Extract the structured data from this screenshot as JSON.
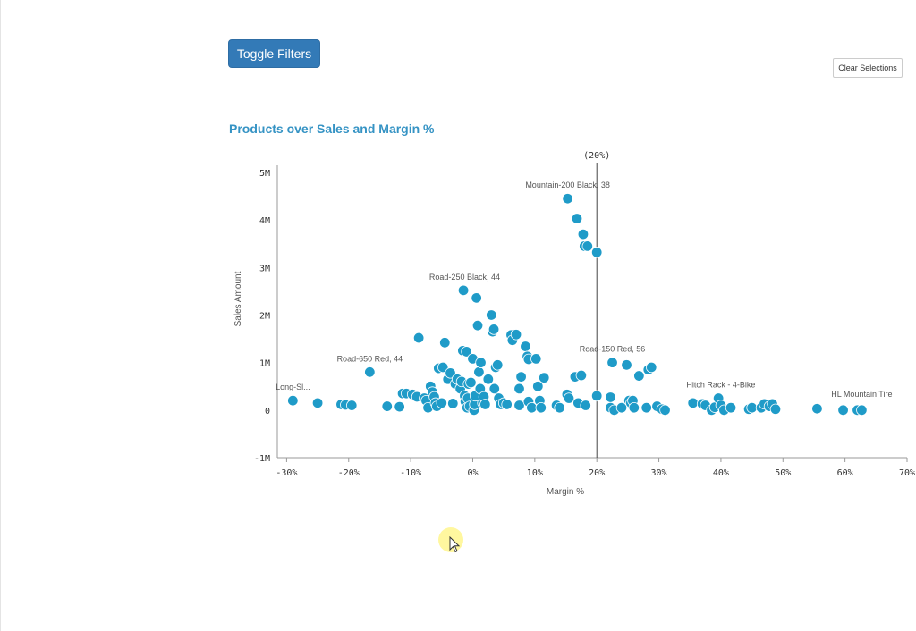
{
  "toolbar": {
    "toggle_label": "Toggle Filters",
    "clear_label": "Clear Selections"
  },
  "colors": {
    "point": "#1f9bc8",
    "point_stroke": "#ffffff",
    "title": "#3593c4",
    "button": "#337ab7",
    "axis": "#999999"
  },
  "chart_data": {
    "type": "scatter",
    "title": "Products over Sales and Margin %",
    "xlabel": "Margin %",
    "ylabel": "Sales Amount",
    "xlim": [
      -0.315,
      0.7
    ],
    "ylim": [
      -1000000,
      5150000
    ],
    "xticks": [
      -0.3,
      -0.2,
      -0.1,
      0,
      0.1,
      0.2,
      0.3,
      0.4,
      0.5,
      0.6,
      0.7
    ],
    "xtick_labels": [
      "-30%",
      "-20%",
      "-10%",
      "0%",
      "10%",
      "20%",
      "30%",
      "40%",
      "50%",
      "60%",
      "70%"
    ],
    "yticks": [
      -1000000,
      0,
      1000000,
      2000000,
      3000000,
      4000000,
      5000000
    ],
    "ytick_labels": [
      "-1M",
      "0",
      "1M",
      "2M",
      "3M",
      "4M",
      "5M"
    ],
    "reference_line": {
      "x": 0.2,
      "label": "(20%)"
    },
    "grid": false,
    "annotations": [
      {
        "text": "Mountain-200 Black, 38",
        "x": 0.153,
        "y": 4450000
      },
      {
        "text": "Road-250 Black, 44",
        "x": -0.013,
        "y": 2520000
      },
      {
        "text": "Road-150 Red, 56",
        "x": 0.225,
        "y": 1000000
      },
      {
        "text": "Road-650 Red, 44",
        "x": -0.166,
        "y": 800000
      },
      {
        "text": "Long-Sl...",
        "x": -0.29,
        "y": 200000
      },
      {
        "text": "Hitch Rack - 4-Bike",
        "x": 0.4,
        "y": 250000
      },
      {
        "text": "HL Mountain Tire",
        "x": 0.627,
        "y": 50000
      }
    ],
    "points": [
      [
        -0.29,
        200000
      ],
      [
        -0.25,
        150000
      ],
      [
        -0.212,
        120000
      ],
      [
        -0.205,
        110000
      ],
      [
        -0.195,
        100000
      ],
      [
        -0.166,
        800000
      ],
      [
        -0.138,
        80000
      ],
      [
        -0.118,
        70000
      ],
      [
        -0.113,
        350000
      ],
      [
        -0.107,
        350000
      ],
      [
        -0.097,
        330000
      ],
      [
        -0.09,
        280000
      ],
      [
        -0.087,
        1520000
      ],
      [
        -0.078,
        250000
      ],
      [
        -0.075,
        200000
      ],
      [
        -0.072,
        50000
      ],
      [
        -0.068,
        500000
      ],
      [
        -0.065,
        380000
      ],
      [
        -0.062,
        280000
      ],
      [
        -0.06,
        150000
      ],
      [
        -0.058,
        80000
      ],
      [
        -0.055,
        880000
      ],
      [
        -0.05,
        150000
      ],
      [
        -0.048,
        900000
      ],
      [
        -0.045,
        1420000
      ],
      [
        -0.04,
        650000
      ],
      [
        -0.036,
        780000
      ],
      [
        -0.032,
        140000
      ],
      [
        -0.028,
        550000
      ],
      [
        -0.025,
        650000
      ],
      [
        -0.02,
        450000
      ],
      [
        -0.018,
        600000
      ],
      [
        -0.016,
        1250000
      ],
      [
        -0.015,
        2520000
      ],
      [
        -0.013,
        300000
      ],
      [
        -0.012,
        180000
      ],
      [
        -0.01,
        1230000
      ],
      [
        -0.009,
        50000
      ],
      [
        -0.008,
        250000
      ],
      [
        -0.007,
        550000
      ],
      [
        -0.005,
        80000
      ],
      [
        -0.003,
        580000
      ],
      [
        0,
        1080000
      ],
      [
        0.002,
        0
      ],
      [
        0.003,
        120000
      ],
      [
        0.004,
        300000
      ],
      [
        0.006,
        2360000
      ],
      [
        0.008,
        1780000
      ],
      [
        0.01,
        800000
      ],
      [
        0.012,
        450000
      ],
      [
        0.013,
        1000000
      ],
      [
        0.016,
        150000
      ],
      [
        0.018,
        280000
      ],
      [
        0.02,
        120000
      ],
      [
        0.025,
        650000
      ],
      [
        0.03,
        2000000
      ],
      [
        0.032,
        1650000
      ],
      [
        0.034,
        1700000
      ],
      [
        0.035,
        450000
      ],
      [
        0.037,
        900000
      ],
      [
        0.04,
        950000
      ],
      [
        0.042,
        250000
      ],
      [
        0.045,
        120000
      ],
      [
        0.05,
        150000
      ],
      [
        0.055,
        120000
      ],
      [
        0.062,
        1580000
      ],
      [
        0.064,
        1470000
      ],
      [
        0.07,
        1590000
      ],
      [
        0.075,
        450000
      ],
      [
        0.075,
        100000
      ],
      [
        0.078,
        700000
      ],
      [
        0.085,
        1340000
      ],
      [
        0.088,
        1130000
      ],
      [
        0.09,
        1070000
      ],
      [
        0.09,
        180000
      ],
      [
        0.095,
        50000
      ],
      [
        0.102,
        1080000
      ],
      [
        0.105,
        500000
      ],
      [
        0.108,
        200000
      ],
      [
        0.11,
        50000
      ],
      [
        0.115,
        680000
      ],
      [
        0.135,
        100000
      ],
      [
        0.14,
        50000
      ],
      [
        0.152,
        330000
      ],
      [
        0.153,
        4450000
      ],
      [
        0.155,
        250000
      ],
      [
        0.165,
        700000
      ],
      [
        0.168,
        4030000
      ],
      [
        0.17,
        150000
      ],
      [
        0.175,
        730000
      ],
      [
        0.178,
        3700000
      ],
      [
        0.18,
        3450000
      ],
      [
        0.182,
        100000
      ],
      [
        0.185,
        3450000
      ],
      [
        0.2,
        3320000
      ],
      [
        0.2,
        300000
      ],
      [
        0.222,
        270000
      ],
      [
        0.222,
        50000
      ],
      [
        0.225,
        1000000
      ],
      [
        0.228,
        0
      ],
      [
        0.24,
        50000
      ],
      [
        0.248,
        950000
      ],
      [
        0.252,
        200000
      ],
      [
        0.255,
        150000
      ],
      [
        0.258,
        200000
      ],
      [
        0.26,
        50000
      ],
      [
        0.268,
        720000
      ],
      [
        0.28,
        50000
      ],
      [
        0.283,
        850000
      ],
      [
        0.288,
        900000
      ],
      [
        0.297,
        80000
      ],
      [
        0.305,
        20000
      ],
      [
        0.31,
        0
      ],
      [
        0.355,
        150000
      ],
      [
        0.37,
        130000
      ],
      [
        0.375,
        100000
      ],
      [
        0.385,
        0
      ],
      [
        0.39,
        60000
      ],
      [
        0.396,
        250000
      ],
      [
        0.4,
        100000
      ],
      [
        0.405,
        0
      ],
      [
        0.416,
        50000
      ],
      [
        0.445,
        20000
      ],
      [
        0.45,
        50000
      ],
      [
        0.465,
        50000
      ],
      [
        0.47,
        130000
      ],
      [
        0.478,
        80000
      ],
      [
        0.483,
        130000
      ],
      [
        0.488,
        20000
      ],
      [
        0.555,
        30000
      ],
      [
        0.597,
        0
      ],
      [
        0.62,
        0
      ],
      [
        0.627,
        0
      ]
    ]
  }
}
